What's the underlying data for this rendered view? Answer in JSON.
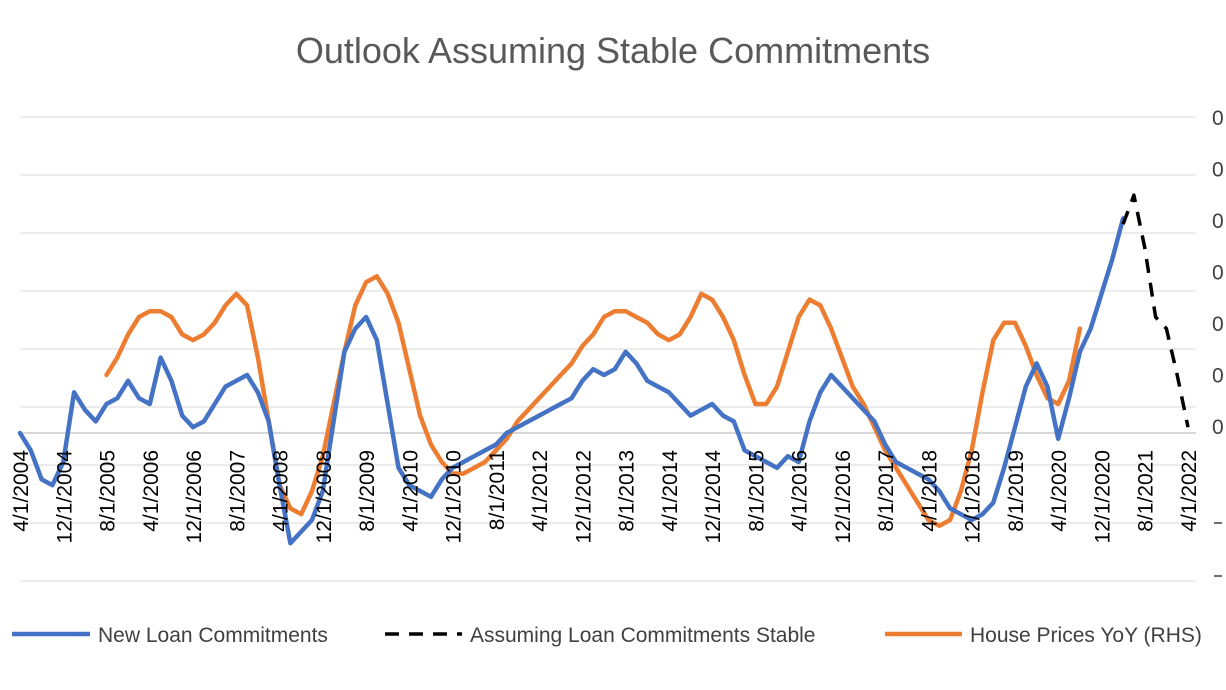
{
  "chart_data": {
    "type": "line",
    "title": "Outlook Assuming Stable Commitments",
    "x_tick_labels": [
      "4/1/2004",
      "12/1/2004",
      "8/1/2005",
      "4/1/2006",
      "12/1/2006",
      "8/1/2007",
      "4/1/2008",
      "12/1/2008",
      "8/1/2009",
      "4/1/2010",
      "12/1/2010",
      "8/1/2011",
      "4/1/2012",
      "12/1/2012",
      "8/1/2013",
      "4/1/2014",
      "12/1/2014",
      "8/1/2015",
      "4/1/2016",
      "12/1/2016",
      "8/1/2017",
      "4/1/2018",
      "12/1/2018",
      "8/1/2019",
      "4/1/2020",
      "12/1/2020",
      "8/1/2021",
      "4/1/2022"
    ],
    "left_axis_labels": [],
    "right_axis_labels": [
      "0",
      "0",
      "0",
      "0",
      "0",
      "0",
      "0"
    ],
    "grid": true,
    "legend_position": "bottom",
    "series": [
      {
        "name": "New Loan Commitments",
        "color": "#4472C4",
        "dash": false,
        "points": [
          [
            "2004-04",
            0.0
          ],
          [
            "2004-06",
            -0.3
          ],
          [
            "2004-08",
            -0.8
          ],
          [
            "2004-10",
            -0.9
          ],
          [
            "2004-12",
            -0.5
          ],
          [
            "2005-02",
            0.7
          ],
          [
            "2005-04",
            0.4
          ],
          [
            "2005-06",
            0.2
          ],
          [
            "2005-08",
            0.5
          ],
          [
            "2005-10",
            0.6
          ],
          [
            "2005-12",
            0.9
          ],
          [
            "2006-02",
            0.6
          ],
          [
            "2006-04",
            0.5
          ],
          [
            "2006-06",
            1.3
          ],
          [
            "2006-08",
            0.9
          ],
          [
            "2006-10",
            0.3
          ],
          [
            "2006-12",
            0.1
          ],
          [
            "2007-02",
            0.2
          ],
          [
            "2007-04",
            0.5
          ],
          [
            "2007-06",
            0.8
          ],
          [
            "2007-08",
            0.9
          ],
          [
            "2007-10",
            1.0
          ],
          [
            "2007-12",
            0.7
          ],
          [
            "2008-02",
            0.2
          ],
          [
            "2008-04",
            -0.9
          ],
          [
            "2008-06",
            -1.9
          ],
          [
            "2008-08",
            -1.7
          ],
          [
            "2008-10",
            -1.5
          ],
          [
            "2008-12",
            -1.0
          ],
          [
            "2009-02",
            0.2
          ],
          [
            "2009-04",
            1.4
          ],
          [
            "2009-06",
            1.8
          ],
          [
            "2009-08",
            2.0
          ],
          [
            "2009-10",
            1.6
          ],
          [
            "2009-12",
            0.5
          ],
          [
            "2010-02",
            -0.6
          ],
          [
            "2010-04",
            -0.9
          ],
          [
            "2010-06",
            -1.0
          ],
          [
            "2010-08",
            -1.1
          ],
          [
            "2010-10",
            -0.8
          ],
          [
            "2010-12",
            -0.6
          ],
          [
            "2011-02",
            -0.5
          ],
          [
            "2011-04",
            -0.4
          ],
          [
            "2011-06",
            -0.3
          ],
          [
            "2011-08",
            -0.2
          ],
          [
            "2011-10",
            0.0
          ],
          [
            "2011-12",
            0.1
          ],
          [
            "2012-02",
            0.2
          ],
          [
            "2012-04",
            0.3
          ],
          [
            "2012-06",
            0.4
          ],
          [
            "2012-08",
            0.5
          ],
          [
            "2012-10",
            0.6
          ],
          [
            "2012-12",
            0.9
          ],
          [
            "2013-02",
            1.1
          ],
          [
            "2013-04",
            1.0
          ],
          [
            "2013-06",
            1.1
          ],
          [
            "2013-08",
            1.4
          ],
          [
            "2013-10",
            1.2
          ],
          [
            "2013-12",
            0.9
          ],
          [
            "2014-02",
            0.8
          ],
          [
            "2014-04",
            0.7
          ],
          [
            "2014-06",
            0.5
          ],
          [
            "2014-08",
            0.3
          ],
          [
            "2014-10",
            0.4
          ],
          [
            "2014-12",
            0.5
          ],
          [
            "2015-02",
            0.3
          ],
          [
            "2015-04",
            0.2
          ],
          [
            "2015-06",
            -0.3
          ],
          [
            "2015-08",
            -0.4
          ],
          [
            "2015-10",
            -0.5
          ],
          [
            "2015-12",
            -0.6
          ],
          [
            "2016-02",
            -0.4
          ],
          [
            "2016-04",
            -0.5
          ],
          [
            "2016-06",
            0.2
          ],
          [
            "2016-08",
            0.7
          ],
          [
            "2016-10",
            1.0
          ],
          [
            "2016-12",
            0.8
          ],
          [
            "2017-02",
            0.6
          ],
          [
            "2017-04",
            0.4
          ],
          [
            "2017-06",
            0.2
          ],
          [
            "2017-08",
            -0.2
          ],
          [
            "2017-10",
            -0.5
          ],
          [
            "2017-12",
            -0.6
          ],
          [
            "2018-02",
            -0.7
          ],
          [
            "2018-04",
            -0.8
          ],
          [
            "2018-06",
            -1.0
          ],
          [
            "2018-08",
            -1.3
          ],
          [
            "2018-10",
            -1.4
          ],
          [
            "2018-12",
            -1.5
          ],
          [
            "2019-02",
            -1.4
          ],
          [
            "2019-04",
            -1.2
          ],
          [
            "2019-06",
            -0.6
          ],
          [
            "2019-08",
            0.1
          ],
          [
            "2019-10",
            0.8
          ],
          [
            "2019-12",
            1.2
          ],
          [
            "2020-02",
            0.8
          ],
          [
            "2020-04",
            -0.1
          ],
          [
            "2020-06",
            0.6
          ],
          [
            "2020-08",
            1.4
          ],
          [
            "2020-10",
            1.8
          ],
          [
            "2020-12",
            2.4
          ],
          [
            "2021-02",
            3.0
          ],
          [
            "2021-04",
            3.7
          ]
        ]
      },
      {
        "name": "Assuming Loan Commitments Stable",
        "color": "#000000",
        "dash": true,
        "points": [
          [
            "2021-04",
            3.6
          ],
          [
            "2021-06",
            4.1
          ],
          [
            "2021-08",
            3.2
          ],
          [
            "2021-10",
            2.0
          ],
          [
            "2021-12",
            1.8
          ],
          [
            "2022-02",
            1.0
          ],
          [
            "2022-04",
            0.1
          ]
        ]
      },
      {
        "name": "House Prices YoY (RHS)",
        "color": "#ED7D31",
        "dash": false,
        "points": [
          [
            "2005-08",
            1.0
          ],
          [
            "2005-10",
            1.3
          ],
          [
            "2005-12",
            1.7
          ],
          [
            "2006-02",
            2.0
          ],
          [
            "2006-04",
            2.1
          ],
          [
            "2006-06",
            2.1
          ],
          [
            "2006-08",
            2.0
          ],
          [
            "2006-10",
            1.7
          ],
          [
            "2006-12",
            1.6
          ],
          [
            "2007-02",
            1.7
          ],
          [
            "2007-04",
            1.9
          ],
          [
            "2007-06",
            2.2
          ],
          [
            "2007-08",
            2.4
          ],
          [
            "2007-10",
            2.2
          ],
          [
            "2007-12",
            1.3
          ],
          [
            "2008-02",
            0.2
          ],
          [
            "2008-04",
            -0.9
          ],
          [
            "2008-06",
            -1.3
          ],
          [
            "2008-08",
            -1.4
          ],
          [
            "2008-10",
            -1.0
          ],
          [
            "2008-12",
            -0.4
          ],
          [
            "2009-02",
            0.5
          ],
          [
            "2009-04",
            1.4
          ],
          [
            "2009-06",
            2.2
          ],
          [
            "2009-08",
            2.6
          ],
          [
            "2009-10",
            2.7
          ],
          [
            "2009-12",
            2.4
          ],
          [
            "2010-02",
            1.9
          ],
          [
            "2010-04",
            1.1
          ],
          [
            "2010-06",
            0.3
          ],
          [
            "2010-08",
            -0.2
          ],
          [
            "2010-10",
            -0.5
          ],
          [
            "2010-12",
            -0.7
          ],
          [
            "2011-02",
            -0.7
          ],
          [
            "2011-04",
            -0.6
          ],
          [
            "2011-06",
            -0.5
          ],
          [
            "2011-08",
            -0.3
          ],
          [
            "2011-10",
            -0.1
          ],
          [
            "2011-12",
            0.2
          ],
          [
            "2012-02",
            0.4
          ],
          [
            "2012-04",
            0.6
          ],
          [
            "2012-06",
            0.8
          ],
          [
            "2012-08",
            1.0
          ],
          [
            "2012-10",
            1.2
          ],
          [
            "2012-12",
            1.5
          ],
          [
            "2013-02",
            1.7
          ],
          [
            "2013-04",
            2.0
          ],
          [
            "2013-06",
            2.1
          ],
          [
            "2013-08",
            2.1
          ],
          [
            "2013-10",
            2.0
          ],
          [
            "2013-12",
            1.9
          ],
          [
            "2014-02",
            1.7
          ],
          [
            "2014-04",
            1.6
          ],
          [
            "2014-06",
            1.7
          ],
          [
            "2014-08",
            2.0
          ],
          [
            "2014-10",
            2.4
          ],
          [
            "2014-12",
            2.3
          ],
          [
            "2015-02",
            2.0
          ],
          [
            "2015-04",
            1.6
          ],
          [
            "2015-06",
            1.0
          ],
          [
            "2015-08",
            0.5
          ],
          [
            "2015-10",
            0.5
          ],
          [
            "2015-12",
            0.8
          ],
          [
            "2016-02",
            1.4
          ],
          [
            "2016-04",
            2.0
          ],
          [
            "2016-06",
            2.3
          ],
          [
            "2016-08",
            2.2
          ],
          [
            "2016-10",
            1.8
          ],
          [
            "2016-12",
            1.3
          ],
          [
            "2017-02",
            0.8
          ],
          [
            "2017-04",
            0.5
          ],
          [
            "2017-06",
            0.1
          ],
          [
            "2017-08",
            -0.3
          ],
          [
            "2017-10",
            -0.6
          ],
          [
            "2017-12",
            -0.9
          ],
          [
            "2018-02",
            -1.2
          ],
          [
            "2018-04",
            -1.5
          ],
          [
            "2018-06",
            -1.6
          ],
          [
            "2018-08",
            -1.5
          ],
          [
            "2018-10",
            -1.0
          ],
          [
            "2018-12",
            -0.3
          ],
          [
            "2019-02",
            0.7
          ],
          [
            "2019-04",
            1.6
          ],
          [
            "2019-06",
            1.9
          ],
          [
            "2019-08",
            1.9
          ],
          [
            "2019-10",
            1.5
          ],
          [
            "2019-12",
            1.0
          ],
          [
            "2020-02",
            0.6
          ],
          [
            "2020-04",
            0.5
          ],
          [
            "2020-06",
            0.9
          ],
          [
            "2020-08",
            1.8
          ]
        ]
      }
    ]
  }
}
